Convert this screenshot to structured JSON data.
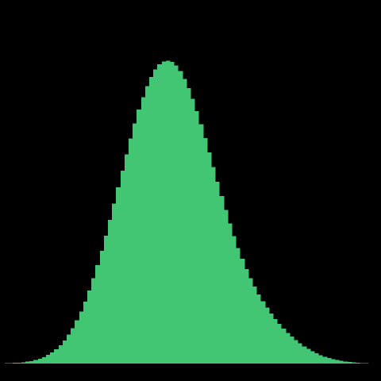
{
  "background_color": "#000000",
  "chart_data": {
    "type": "bar",
    "title": "",
    "xlabel": "",
    "ylabel": "",
    "bar_color": "#43c673",
    "grid": false,
    "legend": "none",
    "xlim": [
      0,
      1
    ],
    "ylim": [
      0,
      1
    ],
    "series": [
      {
        "values": [
          0.0006,
          0.0011,
          0.0017,
          0.0025,
          0.0036,
          0.0051,
          0.0071,
          0.0098,
          0.0133,
          0.0178,
          0.0235,
          0.0307,
          0.0396,
          0.0505,
          0.0636,
          0.0792,
          0.0975,
          0.1187,
          0.1429,
          0.1702,
          0.2007,
          0.2343,
          0.2708,
          0.3101,
          0.3516,
          0.395,
          0.4397,
          0.4851,
          0.5306,
          0.5754,
          0.6188,
          0.66,
          0.6983,
          0.7329,
          0.7632,
          0.7886,
          0.8086,
          0.8228,
          0.8311,
          0.8333,
          0.8294,
          0.8196,
          0.8041,
          0.7833,
          0.7577,
          0.7279,
          0.6945,
          0.6583,
          0.62,
          0.5804,
          0.5401,
          0.4999,
          0.4604,
          0.4221,
          0.3854,
          0.3507,
          0.3182,
          0.2881,
          0.2603,
          0.2349,
          0.2117,
          0.1905,
          0.1712,
          0.1535,
          0.1373,
          0.1224,
          0.1087,
          0.0961,
          0.0845,
          0.0739,
          0.0642,
          0.0554,
          0.0474,
          0.0402,
          0.0338,
          0.0281,
          0.0231,
          0.0188,
          0.0151,
          0.012,
          0.0094,
          0.0073,
          0.0055,
          0.0041,
          0.003,
          0.0021,
          0.0014,
          0.0009,
          0.0005,
          0.0003
        ]
      }
    ]
  }
}
